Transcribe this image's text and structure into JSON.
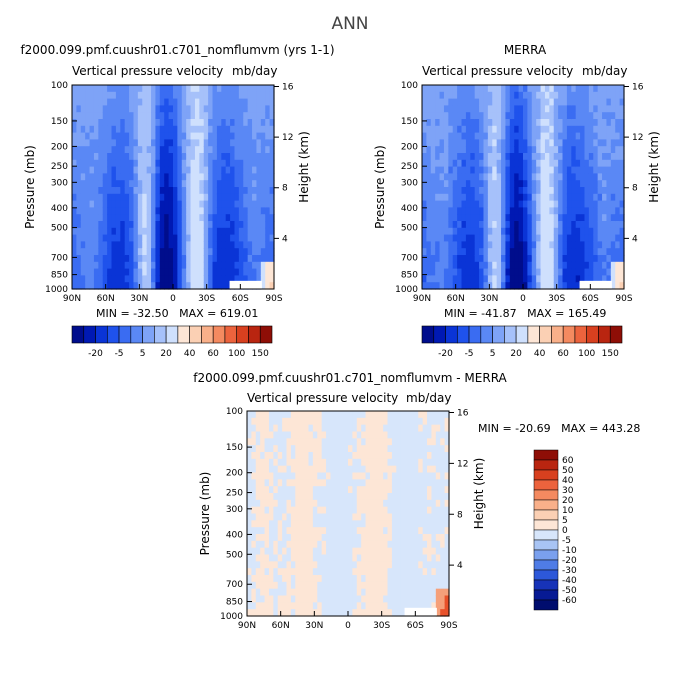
{
  "page_title": "ANN",
  "colors": {
    "neg": [
      "#000d8c",
      "#0019b3",
      "#0a34d6",
      "#1f52ec",
      "#3a6cf2",
      "#5a88f5",
      "#7ea3f7",
      "#a6c1fa",
      "#cfe0fd"
    ],
    "pos": [
      "#fde6d6",
      "#fbd0b4",
      "#f9b08a",
      "#f48a60",
      "#ec633d",
      "#d8401f",
      "#b92510",
      "#8e0e06"
    ]
  },
  "chart_data": [
    {
      "id": "model",
      "type": "heatmap",
      "title": "f2000.099.pmf.cuushr01.c701_nomflumvm (yrs 1-1)",
      "subtitle_left": "Vertical pressure velocity",
      "subtitle_right": "mb/day",
      "ylabel": "Pressure (mb)",
      "ylabel_right": "Height (km)",
      "xticks": [
        "90N",
        "60N",
        "30N",
        "0",
        "30S",
        "60S",
        "90S"
      ],
      "yticks": [
        100,
        150,
        200,
        250,
        300,
        400,
        500,
        700,
        850,
        1000
      ],
      "yticks_right": [
        16,
        12,
        8,
        4
      ],
      "min_value": -32.5,
      "max_value": 619.01,
      "stats": "MIN = -32.50   MAX = 619.01"
    },
    {
      "id": "obs",
      "type": "heatmap",
      "title": "MERRA",
      "subtitle_left": "Vertical pressure velocity",
      "subtitle_right": "mb/day",
      "ylabel": "Pressure (mb)",
      "ylabel_right": "Height (km)",
      "xticks": [
        "90N",
        "60N",
        "30N",
        "0",
        "30S",
        "60S",
        "90S"
      ],
      "yticks": [
        100,
        150,
        200,
        250,
        300,
        400,
        500,
        700,
        850,
        1000
      ],
      "yticks_right": [
        16,
        12,
        8,
        4
      ],
      "min_value": -41.87,
      "max_value": 165.49,
      "stats": "MIN = -41.87   MAX = 165.49"
    },
    {
      "id": "diff",
      "type": "heatmap",
      "title": "f2000.099.pmf.cuushr01.c701_nomflumvm - MERRA",
      "subtitle_left": "Vertical pressure velocity",
      "subtitle_right": "mb/day",
      "ylabel": "Pressure (mb)",
      "ylabel_right": "Height (km)",
      "xticks": [
        "90N",
        "60N",
        "30N",
        "0",
        "30S",
        "60S",
        "90S"
      ],
      "yticks": [
        100,
        150,
        200,
        250,
        300,
        400,
        500,
        700,
        850,
        1000
      ],
      "yticks_right": [
        16,
        12,
        8,
        4
      ],
      "min_value": -20.69,
      "max_value": 443.28,
      "stats": "MIN = -20.69   MAX = 443.28"
    }
  ],
  "colorbar_top": {
    "labels": [
      "-20",
      "-5",
      "5",
      "20",
      "40",
      "60",
      "100",
      "150"
    ]
  },
  "colorbar_diff": {
    "labels": [
      "60",
      "50",
      "40",
      "30",
      "20",
      "10",
      "5",
      "0",
      "-5",
      "-10",
      "-20",
      "-30",
      "-40",
      "-50",
      "-60"
    ]
  }
}
